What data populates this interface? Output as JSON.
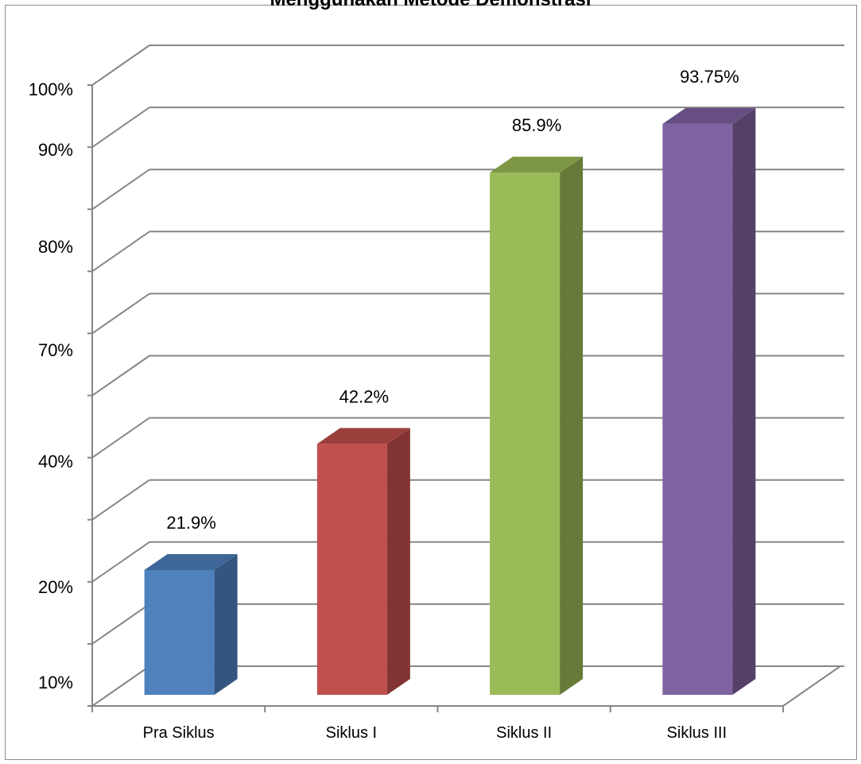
{
  "chart_data": {
    "type": "bar",
    "title": "Menggunakan Metode Demonstrasi",
    "categories": [
      "Pra Siklus",
      "Siklus I",
      "Siklus II",
      "Siklus III"
    ],
    "values": [
      21.9,
      42.2,
      85.9,
      93.75
    ],
    "data_labels": [
      "21.9%",
      "42.2%",
      "85.9%",
      "93.75%"
    ],
    "y_tick_labels": [
      "10%",
      "20%",
      "40%",
      "70%",
      "80%",
      "90%",
      "100%"
    ],
    "ylim": [
      0,
      100
    ],
    "gridlines": true,
    "three_d": true,
    "colors": [
      {
        "front": "#4f81bd",
        "side": "#33557f",
        "top": "#3e6698"
      },
      {
        "front": "#c0504d",
        "side": "#823433",
        "top": "#9b3f3d"
      },
      {
        "front": "#9bbb59",
        "side": "#667b38",
        "top": "#7d9746"
      },
      {
        "front": "#8064a2",
        "side": "#554167",
        "top": "#674f84"
      }
    ]
  }
}
